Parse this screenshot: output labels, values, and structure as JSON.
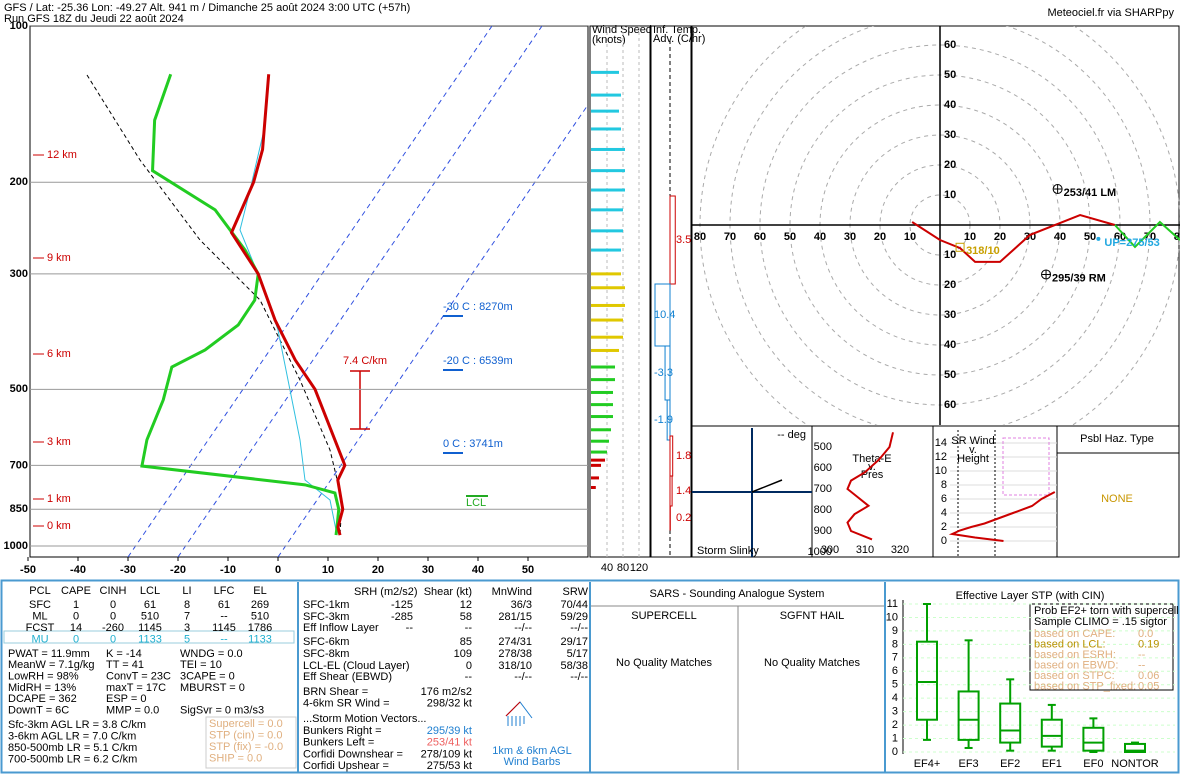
{
  "header": {
    "line1": "GFS / Lat: -25.36 Lon: -49.27 Alt. 941 m / Dimanche 25 août 2024  3:00 UTC (+57h)",
    "line2": "Run GFS 18Z du Jeudi 22 août 2024",
    "credit": "Meteociel.fr via SHARPpy"
  },
  "chart_data": [
    {
      "type": "skewt",
      "pressure_ticks": [
        100,
        200,
        300,
        500,
        700,
        850,
        1000
      ],
      "temp_ticks": [
        -50,
        -40,
        -30,
        -20,
        -10,
        0,
        10,
        20,
        30,
        40,
        50
      ],
      "height_labels": [
        "12 km",
        "9 km",
        "6 km",
        "3 km",
        "1 km",
        "0 km"
      ],
      "annotations": [
        "-30 C : 8270m",
        "-20 C : 6539m",
        "0 C : 3741m",
        "7.4 C/km",
        "LCL"
      ],
      "temperature": {
        "color": "#cc0000",
        "pressure": [
          124,
          173,
          200,
          250,
          300,
          368,
          439,
          500,
          700,
          747,
          850,
          920,
          953
        ],
        "values": [
          -68.1,
          -59.0,
          -56.3,
          -53.8,
          -42.8,
          -33.1,
          -23.6,
          -15.6,
          0.8,
          1.4,
          6.4,
          7.9,
          9.4
        ]
      },
      "dewpoint": {
        "color": "#22cc22",
        "pressure": [
          124,
          152,
          190,
          226,
          270,
          300,
          337,
          376,
          420,
          453,
          524,
          625,
          702,
          763,
          791,
          850,
          920,
          953
        ],
        "values": [
          -87.7,
          -84.6,
          -78.1,
          -60.2,
          -48.7,
          -42.8,
          -39.9,
          -39.8,
          -43.0,
          -47.3,
          -44.5,
          -42.3,
          -39.7,
          -4.5,
          2.6,
          5.6,
          7.7,
          8.6
        ]
      }
    },
    {
      "type": "wind_speed",
      "title": "Wind Speed",
      "subtitle": "(knots)",
      "xticks": [
        40,
        80,
        120
      ],
      "series": [
        {
          "color": "#22c8e0",
          "pressure": [
            123,
            136,
            146,
            158,
            173,
            190,
            207,
            226,
            248,
            270
          ],
          "values": [
            70,
            75,
            70,
            75,
            85,
            85,
            85,
            80,
            80,
            75
          ]
        },
        {
          "color": "#e0c800",
          "pressure": [
            300,
            319,
            345,
            368,
            397,
            421
          ],
          "values": [
            75,
            85,
            85,
            80,
            80,
            70
          ]
        },
        {
          "color": "#22cc22",
          "pressure": [
            453,
            479,
            507,
            535,
            564,
            598,
            629,
            660
          ],
          "values": [
            60,
            60,
            55,
            55,
            55,
            50,
            45,
            40
          ]
        },
        {
          "color": "#cc0000",
          "pressure": [
            684,
            700,
            740,
            772
          ],
          "values": [
            35,
            25,
            20,
            12
          ]
        }
      ]
    },
    {
      "type": "temp_advection",
      "title_lines": [
        "Inf. Temp.",
        "Adv. (C/hr)"
      ],
      "values": [
        3.5,
        10.4,
        -3.3,
        -1.9,
        1.8,
        1.4,
        0.2
      ]
    },
    {
      "type": "hodograph",
      "rings": [
        10,
        20,
        30,
        40,
        50,
        60,
        70,
        80
      ],
      "segments": [
        {
          "color": "#cc0000",
          "u": [
            -9.3,
            0,
            6.7,
            11.7,
            20,
            30,
            46.7,
            58.3
          ],
          "v": [
            1,
            -5,
            -7.7,
            -12.3,
            -12.3,
            -3.3,
            3.3,
            0
          ]
        },
        {
          "color": "#22cc22",
          "u": [
            58.3,
            65,
            73.3,
            80
          ],
          "v": [
            0,
            -7.3,
            1,
            -5
          ]
        }
      ],
      "storm_motions": [
        {
          "dir": 253,
          "spd": 41,
          "label": "253/41 LM",
          "color": "#000000"
        },
        {
          "dir": 295,
          "spd": 39,
          "label": "295/39 RM",
          "color": "#000000"
        },
        {
          "dir": 275,
          "spd": 53,
          "label": "UP=275/53",
          "color": "#22a8e0"
        },
        {
          "dir": 318,
          "spd": 10,
          "label": "318/10",
          "color": "#c8a000"
        }
      ]
    },
    {
      "type": "slinky",
      "deg": "-- deg",
      "title": "Storm Slinky"
    },
    {
      "type": "theta_e",
      "title_lines": [
        "Theta-E",
        "v.",
        "Pres"
      ],
      "yticks": [
        500,
        600,
        700,
        800,
        900,
        1000
      ],
      "xticks": [
        300,
        310,
        320
      ],
      "pressure": [
        430,
        500,
        560,
        620,
        660,
        700,
        740,
        780,
        820,
        860,
        900,
        940
      ],
      "values": [
        318,
        317,
        314,
        310,
        306,
        305,
        308,
        311,
        307,
        305,
        306,
        312
      ]
    },
    {
      "type": "sr_wind",
      "title_lines": [
        "SR Wind",
        "v.",
        "Height"
      ],
      "yticks": [
        0,
        2,
        4,
        6,
        8,
        10,
        12,
        14
      ],
      "height": [
        0,
        0.5,
        1,
        1.5,
        2,
        2.5,
        3,
        4,
        5,
        6,
        7
      ],
      "values": [
        35,
        20,
        8,
        12,
        18,
        25,
        30,
        40,
        50,
        55,
        62
      ]
    },
    {
      "type": "stp_box",
      "title": "Effective Layer STP (with CIN)",
      "categories": [
        "EF4+",
        "EF3",
        "EF2",
        "EF1",
        "EF0",
        "NONTOR"
      ],
      "yticks": [
        0,
        1,
        2,
        3,
        4,
        5,
        6,
        7,
        8,
        9,
        10,
        11
      ],
      "ylim": [
        0,
        11
      ],
      "color": "#00a000",
      "boxes": [
        [
          0.9,
          2.4,
          5.2,
          8.2,
          11
        ],
        [
          0.3,
          0.9,
          2.4,
          4.5,
          8.3
        ],
        [
          0.1,
          0.7,
          1.6,
          3.6,
          5.4
        ],
        [
          0.1,
          0.4,
          1.2,
          2.4,
          3.5
        ],
        [
          0,
          0.1,
          0.7,
          1.8,
          2.5
        ],
        [
          0,
          0,
          0.1,
          0.6,
          0.7
        ]
      ]
    }
  ],
  "haz": {
    "title": "Psbl Haz. Type",
    "value": "NONE"
  },
  "parcels": {
    "header": [
      "PCL",
      "CAPE",
      "CINH",
      "LCL",
      "LI",
      "LFC",
      "EL"
    ],
    "rows": [
      [
        "SFC",
        1,
        0,
        61,
        8,
        61,
        269
      ],
      [
        "ML",
        0,
        0,
        510,
        7,
        "--",
        510
      ],
      [
        "FCST",
        14,
        -260,
        1145,
        3,
        1145,
        1786
      ],
      [
        "MU",
        0,
        0,
        1133,
        5,
        "--",
        1133
      ]
    ]
  },
  "indices": [
    [
      "PWAT = 11.9mm",
      "K = -14",
      "WNDG = 0.0"
    ],
    [
      "MeanW = 7.1g/kg",
      "TT = 41",
      "TEI = 10"
    ],
    [
      "LowRH = 98%",
      "ConvT = 23C",
      "3CAPE = 0"
    ],
    [
      "MidRH = 13%",
      "maxT = 17C",
      "MBURST = 0"
    ],
    [
      "DCAPE = 362",
      "ESP = 0",
      ""
    ],
    [
      "DownT = 6C",
      "MMP = 0.0",
      "SigSvr = 0 m3/s3"
    ]
  ],
  "lapse_rates": [
    "Sfc-3km AGL LR = 3.8 C/km",
    "3-6km AGL LR = 7.0 C/km",
    "850-500mb LR = 5.1 C/km",
    "700-500mb LR = 6.2 C/km"
  ],
  "severe": [
    "Supercell = 0.0",
    "STP (cin) = 0.0",
    "STP (fix) = -0.0",
    "SHIP = 0.0"
  ],
  "kinematics": {
    "header": [
      "SRH (m2/s2)",
      "Shear (kt)",
      "MnWind",
      "SRW"
    ],
    "rows": [
      [
        "SFC-1km",
        -125,
        12,
        "36/3",
        "70/44"
      ],
      [
        "SFC-3km",
        -285,
        58,
        "281/15",
        "59/29"
      ],
      [
        "Eff Inflow Layer",
        "--",
        "--",
        "--/--",
        "--/--"
      ],
      [
        "SFC-6km",
        "",
        85,
        "274/31",
        "29/17"
      ],
      [
        "SFC-8km",
        "",
        109,
        "278/38",
        "5/17"
      ],
      [
        "LCL-EL (Cloud Layer)",
        "",
        0,
        "318/10",
        "58/38"
      ],
      [
        "Eff Shear (EBWD)",
        "",
        "--",
        "--/--",
        "--/--"
      ]
    ],
    "extra": [
      [
        "BRN Shear =",
        "176 m2/s2"
      ],
      [
        "4-6km SR Wind =",
        "298/32 kt"
      ]
    ],
    "storm_header": "...Storm Motion Vectors...",
    "storm": [
      [
        "Bunkers Right =",
        "295/39 kt"
      ],
      [
        "Bunkers Left =",
        "253/41 kt"
      ],
      [
        "Corfidi Downshear =",
        "278/109 kt"
      ],
      [
        "Corfidi Upshear =",
        "275/53 kt"
      ]
    ],
    "barbs_caption": [
      "1km & 6km AGL",
      "Wind Barbs"
    ]
  },
  "sars": {
    "title": "SARS - Sounding Analogue System",
    "columns": [
      "SUPERCELL",
      "SGFNT HAIL"
    ],
    "results": [
      "No Quality Matches",
      "No Quality Matches"
    ]
  },
  "stp_legend": {
    "title": [
      "Prob EF2+ torn with supercell",
      "Sample CLIMO = .15 sigtor"
    ],
    "rows": [
      [
        "based on CAPE:",
        "0.0"
      ],
      [
        "based on LCL:",
        "0.19"
      ],
      [
        "based on ESRH:",
        "--"
      ],
      [
        "based on EBWD:",
        "--"
      ],
      [
        "based on STPC:",
        "0.06"
      ],
      [
        "based on STP_fixed:",
        "0.05"
      ]
    ]
  }
}
